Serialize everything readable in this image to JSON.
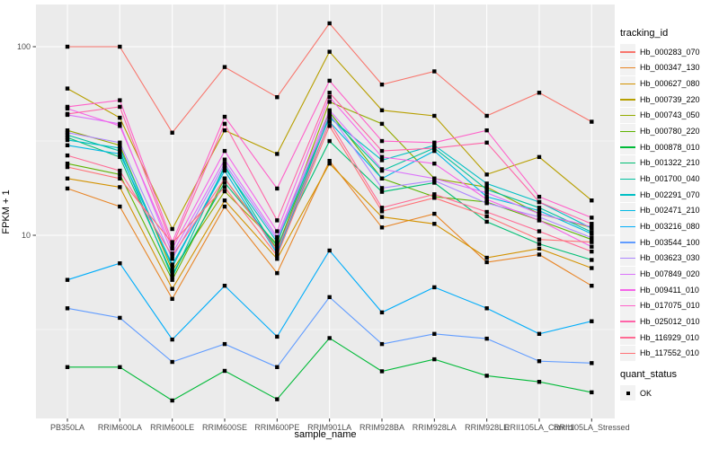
{
  "chart_data": {
    "type": "line",
    "title": "",
    "xlabel": "sample_name",
    "ylabel": "FPKM + 1",
    "y_scale": "log10",
    "ylim": [
      1.07,
      167
    ],
    "grid": true,
    "y_ticks": [
      {
        "label": "100",
        "value": 100
      },
      {
        "label": "10",
        "value": 10
      }
    ],
    "y_minor_ticks": [
      31.62,
      3.162
    ],
    "categories": [
      "PB350LA",
      "RRIM600LA",
      "RRIM600LE",
      "RRIM600SE",
      "RRIM600PE",
      "RRIM901LA",
      "RRIM928BA",
      "RRIM928LA",
      "RRIM928LE",
      "RRII105LA_Control",
      "RRII105LA_Stressed"
    ],
    "legend_position": "right",
    "legend": {
      "series_title": "tracking_id",
      "point_title": "quant_status",
      "point_label": "OK",
      "point_color": "#000000"
    },
    "colors": {
      "panel_bg": "#EBEBEB",
      "grid": "#FFFFFF",
      "legend_key_bg": "#F2F2F2",
      "tick_text": "#4D4D4D",
      "marker": "#000000"
    },
    "series": [
      {
        "name": "Hb_000283_070",
        "color": "#F8766D",
        "values": [
          100,
          100,
          35,
          78,
          54,
          133,
          63,
          74,
          43,
          57,
          40
        ]
      },
      {
        "name": "Hb_000347_130",
        "color": "#E88526",
        "values": [
          17.7,
          14.2,
          4.6,
          14.2,
          6.3,
          24.8,
          11,
          13,
          7.2,
          7.9,
          5.4
        ]
      },
      {
        "name": "Hb_000627_080",
        "color": "#D39200",
        "values": [
          20,
          18,
          5.2,
          15.3,
          7.5,
          24,
          12.5,
          11.5,
          7.6,
          8.5,
          6.7
        ]
      },
      {
        "name": "Hb_000739_220",
        "color": "#B79F00",
        "values": [
          60,
          42,
          10.8,
          36,
          27,
          94,
          46,
          43,
          21,
          26,
          15.3
        ]
      },
      {
        "name": "Hb_000743_050",
        "color": "#93AA00",
        "values": [
          36,
          30,
          6.5,
          17.1,
          9,
          51,
          39,
          20,
          18,
          13,
          11
        ]
      },
      {
        "name": "Hb_000780_220",
        "color": "#5EB300",
        "values": [
          24,
          21,
          5.8,
          20,
          8.5,
          45,
          20,
          16,
          15,
          12,
          9.5
        ]
      },
      {
        "name": "Hb_000878_010",
        "color": "#00BA38",
        "values": [
          2,
          2,
          1.33,
          1.91,
          1.35,
          2.85,
          1.9,
          2.2,
          1.8,
          1.67,
          1.47
        ]
      },
      {
        "name": "Hb_001322_210",
        "color": "#00BF74",
        "values": [
          33,
          26,
          6.2,
          19,
          8.8,
          31.6,
          17,
          19,
          11.8,
          9,
          7.4
        ]
      },
      {
        "name": "Hb_001700_040",
        "color": "#00C19F",
        "values": [
          34,
          28,
          6,
          23.4,
          8.2,
          43,
          22,
          29,
          17.5,
          14,
          10.4
        ]
      },
      {
        "name": "Hb_002291_070",
        "color": "#00BFC4",
        "values": [
          32,
          29,
          6.8,
          22.8,
          9.2,
          42,
          25,
          30,
          18.8,
          15,
          10.9
        ]
      },
      {
        "name": "Hb_002471_210",
        "color": "#00B9E3",
        "values": [
          30,
          27,
          7,
          22,
          8,
          40,
          20,
          28,
          16,
          13.5,
          10.2
        ]
      },
      {
        "name": "Hb_003216_080",
        "color": "#00ADFA",
        "values": [
          5.8,
          7.1,
          2.8,
          5.4,
          2.9,
          8.3,
          3.9,
          5.3,
          4.1,
          3,
          3.5
        ]
      },
      {
        "name": "Hb_003544_100",
        "color": "#619CFF",
        "values": [
          4.1,
          3.65,
          2.13,
          2.65,
          2,
          4.7,
          2.65,
          3,
          2.83,
          2.15,
          2.1
        ]
      },
      {
        "name": "Hb_003623_030",
        "color": "#AE87FF",
        "values": [
          35,
          31,
          7.5,
          24,
          9.5,
          44,
          17.8,
          19.5,
          14.8,
          12.5,
          9.7
        ]
      },
      {
        "name": "Hb_007849_020",
        "color": "#DB72FB",
        "values": [
          43.5,
          39,
          8,
          25.2,
          9.8,
          46,
          22.4,
          20,
          16.8,
          13,
          11.1
        ]
      },
      {
        "name": "Hb_009411_010",
        "color": "#F564E8",
        "values": [
          47,
          38,
          8.5,
          28,
          10.5,
          54,
          26,
          24,
          15.5,
          12,
          8.7
        ]
      },
      {
        "name": "Hb_017075_010",
        "color": "#FF61C9",
        "values": [
          48,
          52,
          9.2,
          42.5,
          17.7,
          66,
          31.6,
          31,
          36,
          16,
          12.4
        ]
      },
      {
        "name": "Hb_025012_010",
        "color": "#FF64A8",
        "values": [
          44,
          48,
          8.8,
          39,
          12,
          57,
          28,
          29,
          31,
          15,
          11.5
        ]
      },
      {
        "name": "Hb_116929_010",
        "color": "#FF6B94",
        "values": [
          26.5,
          22,
          7.8,
          20,
          8.3,
          40,
          14,
          16.5,
          13.3,
          10.5,
          8.2
        ]
      },
      {
        "name": "Hb_117552_010",
        "color": "#FF7176",
        "values": [
          23,
          20,
          9.1,
          18,
          7.8,
          38,
          13.4,
          15.8,
          12.6,
          9.5,
          9.2
        ]
      }
    ]
  }
}
